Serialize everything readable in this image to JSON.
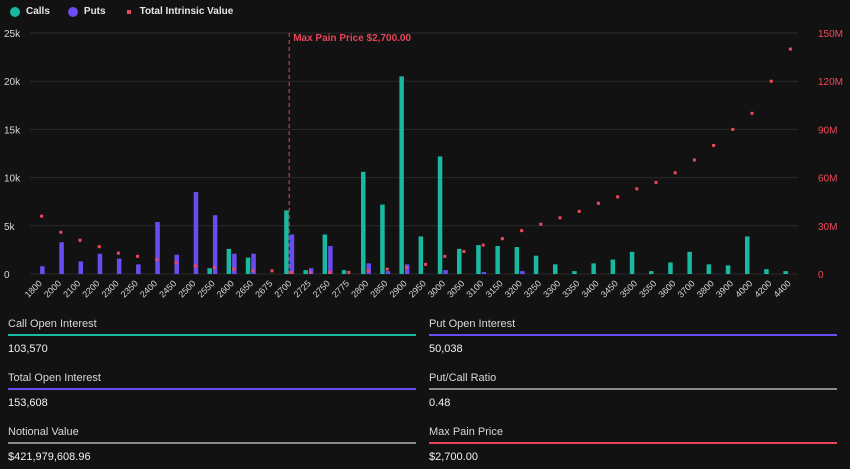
{
  "legend": {
    "calls": "Calls",
    "puts": "Puts",
    "intrinsic": "Total Intrinsic Value"
  },
  "colors": {
    "calls": "#19b8a0",
    "puts": "#6b4cf0",
    "intrinsic": "#f0485a",
    "maxpain": "#e84359"
  },
  "chart_data": {
    "type": "bar",
    "title": "",
    "categories": [
      "1800",
      "2000",
      "2100",
      "2200",
      "2300",
      "2350",
      "2400",
      "2450",
      "2500",
      "2550",
      "2600",
      "2650",
      "2675",
      "2700",
      "2725",
      "2750",
      "2775",
      "2800",
      "2850",
      "2900",
      "2950",
      "3000",
      "3050",
      "3100",
      "3150",
      "3200",
      "3250",
      "3300",
      "3350",
      "3400",
      "3450",
      "3500",
      "3550",
      "3600",
      "3700",
      "3800",
      "3900",
      "4000",
      "4200",
      "4400"
    ],
    "series": [
      {
        "name": "Calls",
        "values": [
          0,
          0,
          0,
          0,
          0,
          0,
          0,
          0,
          0,
          600,
          2600,
          1700,
          0,
          6600,
          400,
          4100,
          400,
          10600,
          7200,
          20500,
          3900,
          12200,
          2600,
          3000,
          2900,
          2800,
          1900,
          1000,
          300,
          1100,
          1500,
          2300,
          300,
          1200,
          2300,
          1000,
          900,
          3900,
          500,
          300
        ]
      },
      {
        "name": "Puts",
        "values": [
          800,
          3300,
          1300,
          2100,
          1600,
          1000,
          5400,
          2000,
          8500,
          6100,
          2100,
          2100,
          0,
          4100,
          600,
          2900,
          0,
          1100,
          300,
          1000,
          0,
          400,
          0,
          200,
          0,
          300,
          0,
          0,
          0,
          0,
          0,
          0,
          0,
          0,
          0,
          0,
          0,
          0,
          0,
          0
        ]
      },
      {
        "name": "Total Intrinsic Value",
        "axis": "right",
        "values": [
          36,
          26,
          21,
          17,
          13,
          11,
          9,
          7,
          5,
          4,
          3,
          2,
          2,
          1,
          1,
          1,
          1,
          2,
          3,
          4,
          6,
          11,
          14,
          18,
          22,
          27,
          31,
          35,
          39,
          44,
          48,
          53,
          57,
          63,
          71,
          80,
          90,
          100,
          120,
          140
        ]
      }
    ],
    "ylim": [
      0,
      25000
    ],
    "yticks": [
      "0",
      "5k",
      "10k",
      "15k",
      "20k",
      "25k"
    ],
    "ylim_right": [
      0,
      150
    ],
    "yticks_right": [
      "0",
      "30M",
      "60M",
      "90M",
      "120M",
      "150M"
    ],
    "max_pain_index": 13,
    "max_pain_label": "Max Pain Price $2,700.00"
  },
  "stats": [
    {
      "label": "Call Open Interest",
      "value": "103,570",
      "color": "#19b8a0"
    },
    {
      "label": "Put Open Interest",
      "value": "50,038",
      "color": "#6b4cf0"
    },
    {
      "label": "Total Open Interest",
      "value": "153,608",
      "color": "#6b4cf0"
    },
    {
      "label": "Put/Call Ratio",
      "value": "0.48",
      "color": "#8a8a8a"
    },
    {
      "label": "Notional Value",
      "value": "$421,979,608.96",
      "color": "#8a8a8a"
    },
    {
      "label": "Max Pain Price",
      "value": "$2,700.00",
      "color": "#e84359"
    }
  ]
}
